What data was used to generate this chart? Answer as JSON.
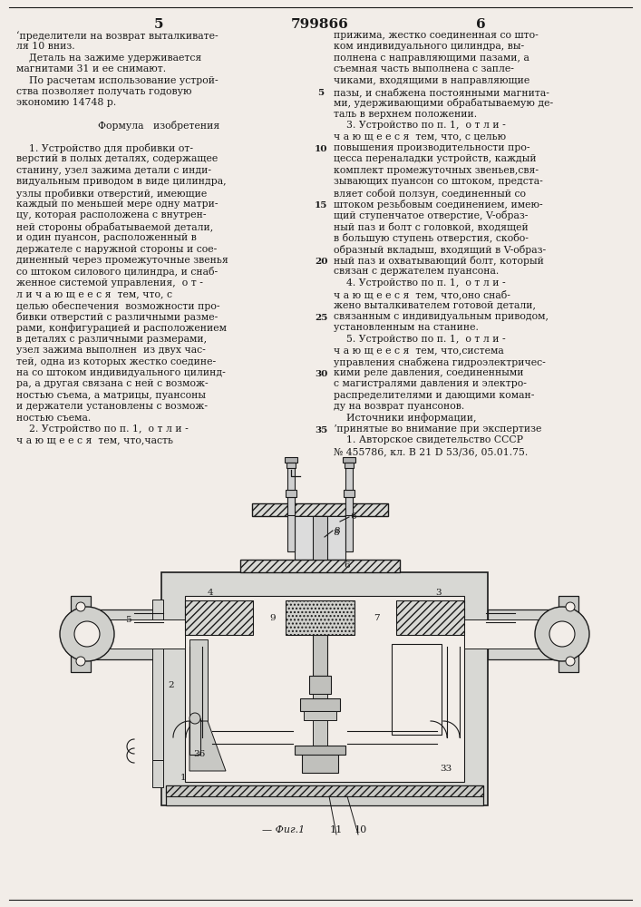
{
  "page_left": "5",
  "page_center": "799866",
  "page_right": "6",
  "background_color": "#f2ede8",
  "text_color": "#1a1a1a",
  "left_col_text": [
    "‘пределители на возврат выталкивате-",
    "ля 10 вниз.",
    "    Деталь на зажиме удерживается",
    "магнитами 31 и ее снимают.",
    "    По расчетам использование устрой-",
    "ства позволяет получать годовую",
    "экономию 14748 р.",
    "",
    "   Формула   изобретения",
    "",
    "    1. Устройство для пробивки от-",
    "верстий в полых деталях, содержащее",
    "станину, узел зажима детали с инди-",
    "видуальным приводом в виде цилиндра,",
    "узлы пробивки отверстий, имеющие",
    "каждый по меньшей мере одну матри-",
    "цу, которая расположена с внутрен-",
    "ней стороны обрабатываемой детали,",
    "и один пуансон, расположенный в",
    "держателе с наружной стороны и сое-",
    "диненный через промежуточные звенья",
    "со штоком силового цилиндра, и снаб-",
    "женное системой управления,  о т -",
    "л и ч а ю щ е е с я  тем, что, с",
    "целью обеспечения  возможности про-",
    "бивки отверстий с различными разме-",
    "рами, конфигурацией и расположением",
    "в деталях с различными размерами,",
    "узел зажима выполнен  из двух час-",
    "тей, одна из которых жестко соедине-",
    "на со штоком индивидуального цилинд-",
    "ра, а другая связана с ней с возмож-",
    "ностью съема, а матрицы, пуансоны",
    "и держатели установлены с возмож-",
    "ностью съема.",
    "    2. Устройство по п. 1,  о т л и -",
    "ч а ю щ е е с я  тем, что,часть"
  ],
  "right_col_text": [
    "прижима, жестко соединенная со што-",
    "ком индивидуального цилиндра, вы-",
    "полнена с направляющими пазами, а",
    "съемная часть выполнена с запле-",
    "чиками, входящими в направляющие",
    "пазы, и снабжена постоянными магнита-",
    "ми, удерживающими обрабатываемую де-",
    "таль в верхнем положении.",
    "    3. Устройство по п. 1,  о т л и -",
    "ч а ю щ е е с я  тем, что, с целью",
    "повышения производительности про-",
    "цесса переналадки устройств, каждый",
    "комплект промежуточных звеньев,свя-",
    "зывающих пуансон со штоком, предста-",
    "вляет собой ползун, соединенный со",
    "штоком резьбовым соединением, имею-",
    "щий ступенчатое отверстие, V-образ-",
    "ный паз и болт с головкой, входящей",
    "в большую ступень отверстия, скобо-",
    "образный вкладыш, входящий в V-образ-",
    "ный паз и охватывающий болт, который",
    "связан с держателем пуансона.",
    "    4. Устройство по п. 1,  о т л и -",
    "ч а ю щ е е с я  тем, что,оно снаб-",
    "жено выталкивателем готовой детали,",
    "связанным с индивидуальным приводом,",
    "установленным на станине.",
    "    5. Устройство по п. 1,  о т л и -",
    "ч а ю щ е е с я  тем, что,система",
    "управления снабжена гидроэлектричес-",
    "кими реле давления, соединенными",
    "с магистралями давления и электро-",
    "распределителями и дающими коман-",
    "ду на возврат пуансонов.",
    "    Источники информации,",
    "ʼпринятые во внимание при экспертизе",
    "    1. Авторское свидетельство СССР",
    "№ 455786, кл. В 21 D 53/36, 05.01.75."
  ],
  "right_line_numbers": [
    [
      6,
      "5"
    ],
    [
      11,
      "10"
    ],
    [
      16,
      "15"
    ],
    [
      21,
      "20"
    ],
    [
      26,
      "25"
    ],
    [
      31,
      "30"
    ],
    [
      36,
      "35"
    ]
  ]
}
